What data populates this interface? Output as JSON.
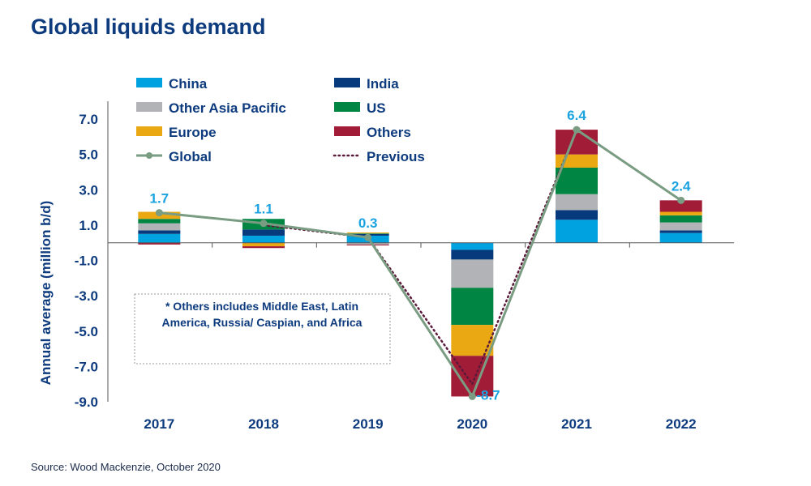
{
  "title": "Global liquids demand",
  "source": "Source: Wood Mackenzie, October 2020",
  "note": [
    "* Others includes Middle East, Latin",
    "America, Russia/ Caspian, and Africa"
  ],
  "chart_data": {
    "type": "bar",
    "stacked": true,
    "ylabel": "Annual average (million b/d)",
    "ylim": [
      -9,
      7
    ],
    "yticks": [
      "7.0",
      "5.0",
      "3.0",
      "1.0",
      "-1.0",
      "-3.0",
      "-5.0",
      "-7.0",
      "-9.0"
    ],
    "categories": [
      "2017",
      "2018",
      "2019",
      "2020",
      "2021",
      "2022"
    ],
    "legend_position": "top-left",
    "series": [
      {
        "name": "China",
        "color": "#00a3e0",
        "values": [
          0.5,
          0.4,
          0.4,
          -0.4,
          1.3,
          0.55
        ]
      },
      {
        "name": "India",
        "color": "#063a7d",
        "values": [
          0.2,
          0.35,
          0.1,
          -0.55,
          0.55,
          0.15
        ]
      },
      {
        "name": "Other Asia Pacific",
        "color": "#b1b3b6",
        "values": [
          0.4,
          0,
          -0.1,
          -1.6,
          0.9,
          0.45
        ]
      },
      {
        "name": "US",
        "color": "#008542",
        "values": [
          0.25,
          0.6,
          0.03,
          -2.1,
          1.5,
          0.4
        ]
      },
      {
        "name": "Europe",
        "color": "#eaa813",
        "values": [
          0.4,
          -0.2,
          0.05,
          -1.75,
          0.75,
          0.2
        ]
      },
      {
        "name": "Others",
        "color": "#a11c37",
        "values": [
          -0.1,
          -0.1,
          -0.05,
          -2.3,
          1.4,
          0.65
        ]
      }
    ],
    "lines": [
      {
        "name": "Global",
        "color": "#7a9c82",
        "style": "solid-markers",
        "values": [
          1.7,
          1.1,
          0.3,
          -8.7,
          6.4,
          2.4
        ],
        "labels": [
          "1.7",
          "1.1",
          "0.3",
          "-8.7",
          "6.4",
          "2.4"
        ]
      },
      {
        "name": "Previous",
        "color": "#5b1a3a",
        "style": "dotted",
        "values": [
          null,
          1.0,
          0.3,
          -8.0,
          6.4,
          null
        ]
      }
    ],
    "label_color": "#1aa3e0"
  }
}
